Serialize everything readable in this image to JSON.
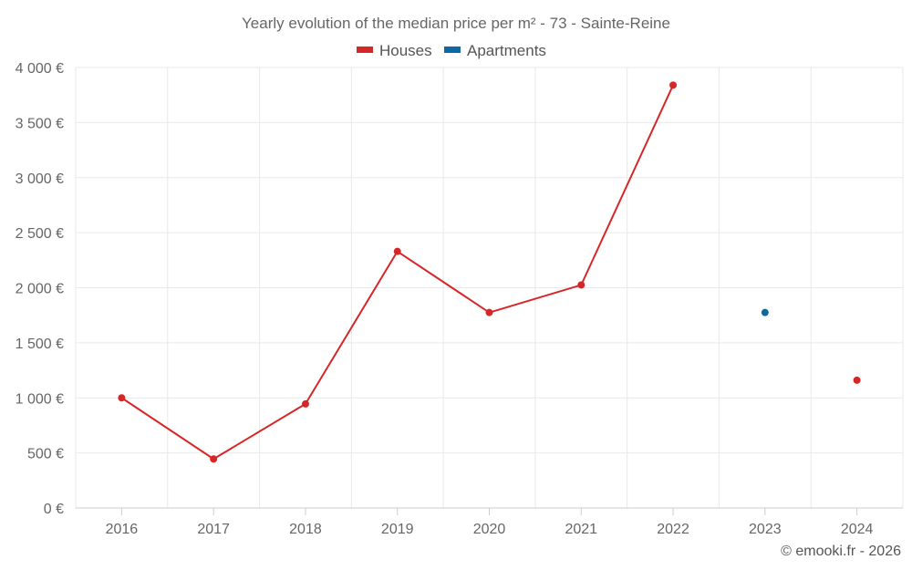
{
  "chart_data": {
    "type": "line",
    "title": "Yearly evolution of the median price per m² - 73 - Sainte-Reine",
    "categories": [
      "2016",
      "2017",
      "2018",
      "2019",
      "2020",
      "2021",
      "2022",
      "2023",
      "2024"
    ],
    "series": [
      {
        "name": "Houses",
        "color": "#d62728",
        "values": [
          1000,
          445,
          945,
          2330,
          1775,
          2025,
          3840,
          null,
          1160
        ]
      },
      {
        "name": "Apartments",
        "color": "#0b6aa2",
        "values": [
          null,
          null,
          null,
          null,
          null,
          null,
          null,
          1775,
          null
        ]
      }
    ],
    "yticks": [
      {
        "value": 0,
        "label": "0 €"
      },
      {
        "value": 500,
        "label": "500 €"
      },
      {
        "value": 1000,
        "label": "1 000 €"
      },
      {
        "value": 1500,
        "label": "1 500 €"
      },
      {
        "value": 2000,
        "label": "2 000 €"
      },
      {
        "value": 2500,
        "label": "2 500 €"
      },
      {
        "value": 3000,
        "label": "3 000 €"
      },
      {
        "value": 3500,
        "label": "3 500 €"
      },
      {
        "value": 4000,
        "label": "4 000 €"
      }
    ],
    "ylim": [
      0,
      4000
    ],
    "xlabel": "",
    "ylabel": "",
    "grid": true,
    "legend_position": "top-center"
  },
  "credit": "© emooki.fr - 2026"
}
